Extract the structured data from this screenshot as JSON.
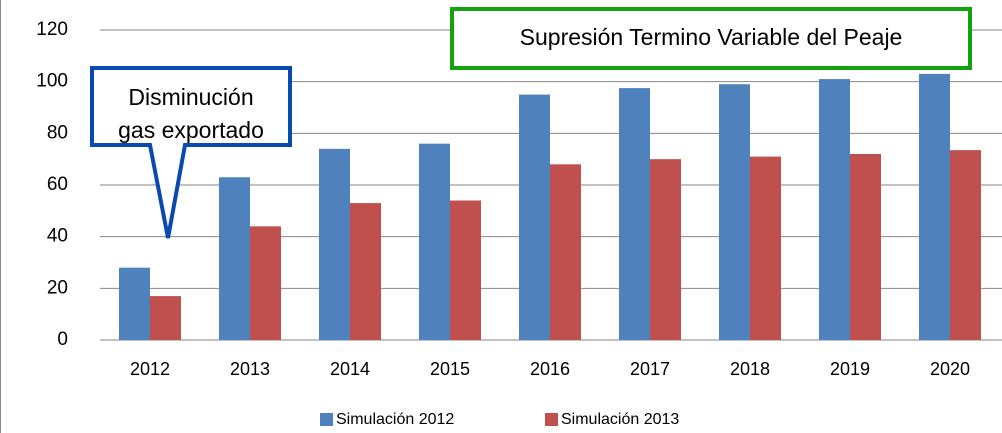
{
  "chart_data": {
    "type": "bar",
    "categories": [
      "2012",
      "2013",
      "2014",
      "2015",
      "2016",
      "2017",
      "2018",
      "2019",
      "2020"
    ],
    "series": [
      {
        "name": "Simulación 2012",
        "color": "#4f81bd",
        "values": [
          28,
          63,
          74,
          76,
          95,
          97.5,
          99,
          101,
          103
        ]
      },
      {
        "name": "Simulación 2013",
        "color": "#c0504d",
        "values": [
          17,
          44,
          53,
          54,
          68,
          70,
          71,
          72,
          73.5
        ]
      }
    ],
    "ylim": [
      0,
      120
    ],
    "yticks": [
      0,
      20,
      40,
      60,
      80,
      100,
      120
    ],
    "grid": true,
    "legend": "bottom",
    "annotations": [
      {
        "text": "Supresión Termino Variable del Peaje",
        "color": "#13a10e"
      },
      {
        "lines": [
          "Disminución",
          "gas exportado"
        ],
        "color": "#0a4ab0"
      }
    ]
  }
}
